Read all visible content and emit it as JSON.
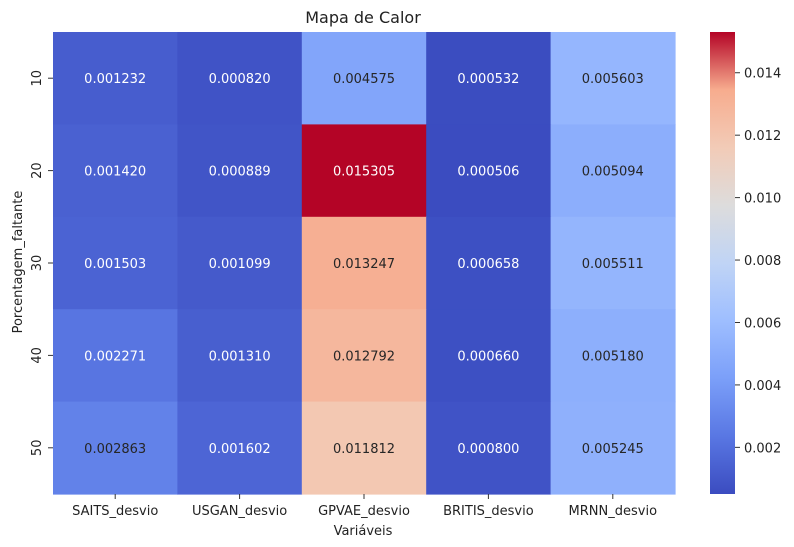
{
  "chart_data": {
    "type": "heatmap",
    "title": "Mapa de Calor",
    "xlabel": "Variáveis",
    "ylabel": "Porcentagem_faltante",
    "x_categories": [
      "SAITS_desvio",
      "USGAN_desvio",
      "GPVAE_desvio",
      "BRITIS_desvio",
      "MRNN_desvio"
    ],
    "y_categories": [
      "10",
      "20",
      "30",
      "40",
      "50"
    ],
    "values": [
      [
        0.001232,
        0.00082,
        0.004575,
        0.000532,
        0.005603
      ],
      [
        0.00142,
        0.000889,
        0.015305,
        0.000506,
        0.005094
      ],
      [
        0.001503,
        0.001099,
        0.013247,
        0.000658,
        0.005511
      ],
      [
        0.002271,
        0.00131,
        0.012792,
        0.00066,
        0.00518
      ],
      [
        0.002863,
        0.001602,
        0.011812,
        0.0008,
        0.005245
      ]
    ],
    "cell_labels": [
      [
        "0.001232",
        "0.000820",
        "0.004575",
        "0.000532",
        "0.005603"
      ],
      [
        "0.001420",
        "0.000889",
        "0.015305",
        "0.000506",
        "0.005094"
      ],
      [
        "0.001503",
        "0.001099",
        "0.013247",
        "0.000658",
        "0.005511"
      ],
      [
        "0.002271",
        "0.001310",
        "0.012792",
        "0.000660",
        "0.005180"
      ],
      [
        "0.002863",
        "0.001602",
        "0.011812",
        "0.000800",
        "0.005245"
      ]
    ],
    "colormap": "coolwarm",
    "vmin": 0.000506,
    "vmax": 0.015305,
    "colorbar_ticks": [
      "0.002",
      "0.004",
      "0.006",
      "0.008",
      "0.010",
      "0.012",
      "0.014"
    ],
    "colorbar_tick_values": [
      0.002,
      0.004,
      0.006,
      0.008,
      0.01,
      0.012,
      0.014
    ],
    "legend_placement": "right",
    "grid": false
  }
}
